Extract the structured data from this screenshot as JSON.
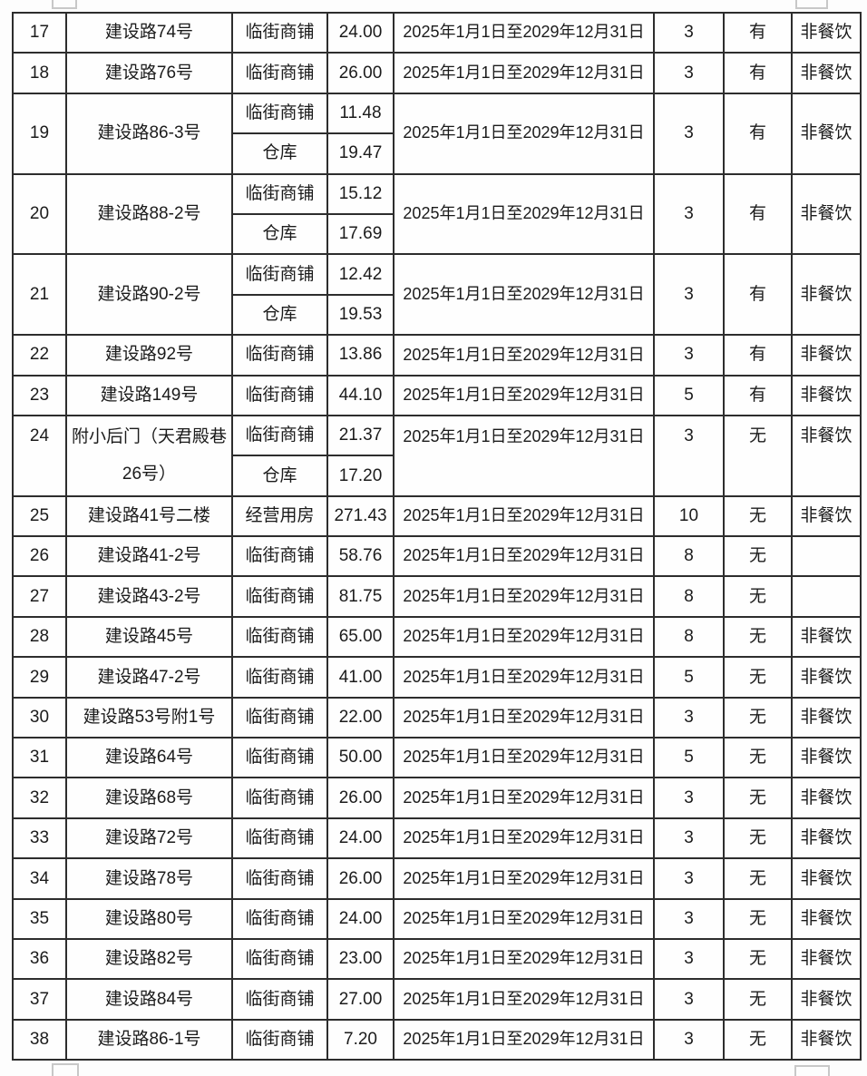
{
  "colors": {
    "table_border": "#2d2d2d",
    "text": "#1b1b1b",
    "corner_mark": "#c8c8c8",
    "page_background": "#fdfdfd"
  },
  "table": {
    "rows": [
      {
        "seq": "17",
        "location": "建设路74号",
        "units": [
          {
            "type": "临街商铺",
            "area": "24.00"
          }
        ],
        "lease_period": "2025年1月1日至2029年12月31日",
        "term_years": "3",
        "status": "有",
        "restriction": "非餐饮"
      },
      {
        "seq": "18",
        "location": "建设路76号",
        "units": [
          {
            "type": "临街商铺",
            "area": "26.00"
          }
        ],
        "lease_period": "2025年1月1日至2029年12月31日",
        "term_years": "3",
        "status": "有",
        "restriction": "非餐饮"
      },
      {
        "seq": "19",
        "location": "建设路86-3号",
        "units": [
          {
            "type": "临街商铺",
            "area": "11.48"
          },
          {
            "type": "仓库",
            "area": "19.47"
          }
        ],
        "lease_period": "2025年1月1日至2029年12月31日",
        "term_years": "3",
        "status": "有",
        "restriction": "非餐饮"
      },
      {
        "seq": "20",
        "location": "建设路88-2号",
        "units": [
          {
            "type": "临街商铺",
            "area": "15.12"
          },
          {
            "type": "仓库",
            "area": "17.69"
          }
        ],
        "lease_period": "2025年1月1日至2029年12月31日",
        "term_years": "3",
        "status": "有",
        "restriction": "非餐饮"
      },
      {
        "seq": "21",
        "location": "建设路90-2号",
        "units": [
          {
            "type": "临街商铺",
            "area": "12.42"
          },
          {
            "type": "仓库",
            "area": "19.53"
          }
        ],
        "lease_period": "2025年1月1日至2029年12月31日",
        "term_years": "3",
        "status": "有",
        "restriction": "非餐饮"
      },
      {
        "seq": "22",
        "location": "建设路92号",
        "units": [
          {
            "type": "临街商铺",
            "area": "13.86"
          }
        ],
        "lease_period": "2025年1月1日至2029年12月31日",
        "term_years": "3",
        "status": "有",
        "restriction": "非餐饮"
      },
      {
        "seq": "23",
        "location": "建设路149号",
        "units": [
          {
            "type": "临街商铺",
            "area": "44.10"
          }
        ],
        "lease_period": "2025年1月1日至2029年12月31日",
        "term_years": "5",
        "status": "有",
        "restriction": "非餐饮"
      },
      {
        "seq": "24",
        "location": "附小后门（天君殿巷26号）",
        "units": [
          {
            "type": "临街商铺",
            "area": "21.37"
          },
          {
            "type": "仓库",
            "area": "17.20"
          }
        ],
        "lease_period": "2025年1月1日至2029年12月31日",
        "term_years": "3",
        "status": "无",
        "restriction": "非餐饮",
        "merged_valign": "top"
      },
      {
        "seq": "25",
        "location": "建设路41号二楼",
        "units": [
          {
            "type": "经营用房",
            "area": "271.43"
          }
        ],
        "lease_period": "2025年1月1日至2029年12月31日",
        "term_years": "10",
        "status": "无",
        "restriction": "非餐饮"
      },
      {
        "seq": "26",
        "location": "建设路41-2号",
        "units": [
          {
            "type": "临街商铺",
            "area": "58.76"
          }
        ],
        "lease_period": "2025年1月1日至2029年12月31日",
        "term_years": "8",
        "status": "无",
        "restriction": ""
      },
      {
        "seq": "27",
        "location": "建设路43-2号",
        "units": [
          {
            "type": "临街商铺",
            "area": "81.75"
          }
        ],
        "lease_period": "2025年1月1日至2029年12月31日",
        "term_years": "8",
        "status": "无",
        "restriction": ""
      },
      {
        "seq": "28",
        "location": "建设路45号",
        "units": [
          {
            "type": "临街商铺",
            "area": "65.00"
          }
        ],
        "lease_period": "2025年1月1日至2029年12月31日",
        "term_years": "8",
        "status": "无",
        "restriction": "非餐饮"
      },
      {
        "seq": "29",
        "location": "建设路47-2号",
        "units": [
          {
            "type": "临街商铺",
            "area": "41.00"
          }
        ],
        "lease_period": "2025年1月1日至2029年12月31日",
        "term_years": "5",
        "status": "无",
        "restriction": "非餐饮"
      },
      {
        "seq": "30",
        "location": "建设路53号附1号",
        "units": [
          {
            "type": "临街商铺",
            "area": "22.00"
          }
        ],
        "lease_period": "2025年1月1日至2029年12月31日",
        "term_years": "3",
        "status": "无",
        "restriction": "非餐饮"
      },
      {
        "seq": "31",
        "location": "建设路64号",
        "units": [
          {
            "type": "临街商铺",
            "area": "50.00"
          }
        ],
        "lease_period": "2025年1月1日至2029年12月31日",
        "term_years": "5",
        "status": "无",
        "restriction": "非餐饮"
      },
      {
        "seq": "32",
        "location": "建设路68号",
        "units": [
          {
            "type": "临街商铺",
            "area": "26.00"
          }
        ],
        "lease_period": "2025年1月1日至2029年12月31日",
        "term_years": "3",
        "status": "无",
        "restriction": "非餐饮"
      },
      {
        "seq": "33",
        "location": "建设路72号",
        "units": [
          {
            "type": "临街商铺",
            "area": "24.00"
          }
        ],
        "lease_period": "2025年1月1日至2029年12月31日",
        "term_years": "3",
        "status": "无",
        "restriction": "非餐饮"
      },
      {
        "seq": "34",
        "location": "建设路78号",
        "units": [
          {
            "type": "临街商铺",
            "area": "26.00"
          }
        ],
        "lease_period": "2025年1月1日至2029年12月31日",
        "term_years": "3",
        "status": "无",
        "restriction": "非餐饮"
      },
      {
        "seq": "35",
        "location": "建设路80号",
        "units": [
          {
            "type": "临街商铺",
            "area": "24.00"
          }
        ],
        "lease_period": "2025年1月1日至2029年12月31日",
        "term_years": "3",
        "status": "无",
        "restriction": "非餐饮"
      },
      {
        "seq": "36",
        "location": "建设路82号",
        "units": [
          {
            "type": "临街商铺",
            "area": "23.00"
          }
        ],
        "lease_period": "2025年1月1日至2029年12月31日",
        "term_years": "3",
        "status": "无",
        "restriction": "非餐饮"
      },
      {
        "seq": "37",
        "location": "建设路84号",
        "units": [
          {
            "type": "临街商铺",
            "area": "27.00"
          }
        ],
        "lease_period": "2025年1月1日至2029年12月31日",
        "term_years": "3",
        "status": "无",
        "restriction": "非餐饮"
      },
      {
        "seq": "38",
        "location": "建设路86-1号",
        "units": [
          {
            "type": "临街商铺",
            "area": "7.20"
          }
        ],
        "lease_period": "2025年1月1日至2029年12月31日",
        "term_years": "3",
        "status": "无",
        "restriction": "非餐饮"
      }
    ]
  }
}
